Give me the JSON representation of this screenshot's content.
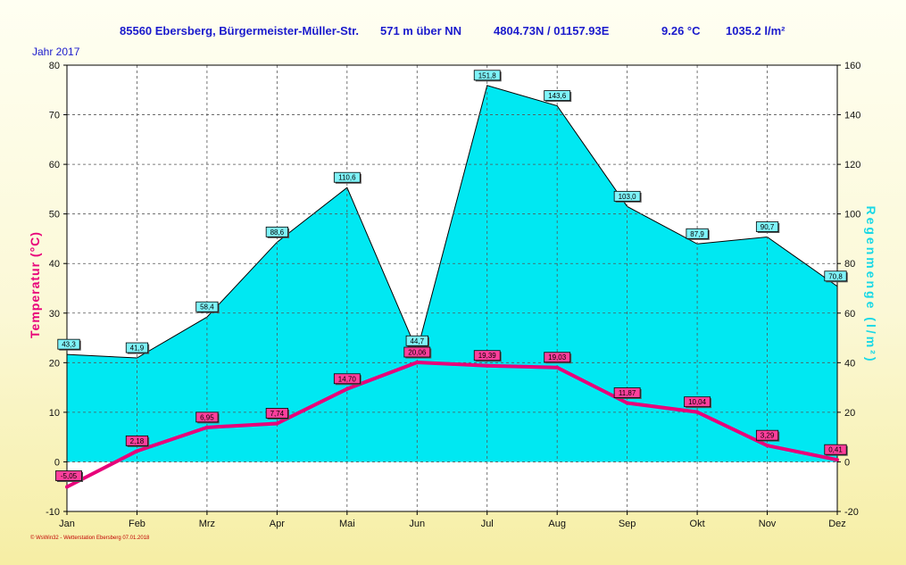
{
  "header": {
    "station": "85560 Ebersberg, Bürgermeister-Müller-Str.",
    "altitude": "571 m über NN",
    "coords": "4804.73N / 01157.93E",
    "mean_temp": "9.26 °C",
    "total_rain": "1035.2 l/m²",
    "year_label": "Jahr 2017"
  },
  "footer": {
    "credit": "© WsWin32 - Wetterstation Ebersberg 07.01.2018"
  },
  "colors": {
    "temperature": "#e8007a",
    "rain_fill": "#00e8f2",
    "rain_label_bg": "#7ff3f9",
    "temp_label_bg": "#ff3f9c",
    "temp_axis_title": "#e8007a",
    "rain_axis_title": "#19d8e6",
    "header_text": "#1a1acc"
  },
  "chart_data": {
    "type": "area",
    "categories": [
      "Jan",
      "Feb",
      "Mrz",
      "Apr",
      "Mai",
      "Jun",
      "Jul",
      "Aug",
      "Sep",
      "Okt",
      "Nov",
      "Dez"
    ],
    "series": [
      {
        "name": "Regenmenge",
        "axis": "right",
        "type": "area",
        "values": [
          43.3,
          41.9,
          58.4,
          88.6,
          110.6,
          44.7,
          151.8,
          143.6,
          103.0,
          87.9,
          90.7,
          70.8
        ],
        "labels": [
          "43,3",
          "41,9",
          "58,4",
          "88,6",
          "110,6",
          "44,7",
          "151,8",
          "143,6",
          "103,0",
          "87,9",
          "90,7",
          "70,8"
        ]
      },
      {
        "name": "Temperatur",
        "axis": "left",
        "type": "line",
        "values": [
          -5.05,
          2.18,
          6.95,
          7.74,
          14.7,
          20.06,
          19.39,
          19.03,
          11.87,
          10.04,
          3.29,
          0.41
        ],
        "labels": [
          "-5,05",
          "2,18",
          "6,95",
          "7,74",
          "14,70",
          "20,06",
          "19,39",
          "19,03",
          "11,87",
          "10,04",
          "3,29",
          "0,41"
        ]
      }
    ],
    "ylabel": "Temperatur (°C)",
    "y2label": "Regenmenge (l/m²)",
    "ylim": [
      -10,
      80
    ],
    "y2lim": [
      -20,
      160
    ],
    "yticks": [
      "-10",
      "0",
      "10",
      "20",
      "30",
      "40",
      "50",
      "60",
      "70",
      "80"
    ],
    "y2ticks": [
      "-20",
      "0",
      "20",
      "40",
      "60",
      "80",
      "100",
      "120",
      "140",
      "160"
    ],
    "grid": true
  }
}
